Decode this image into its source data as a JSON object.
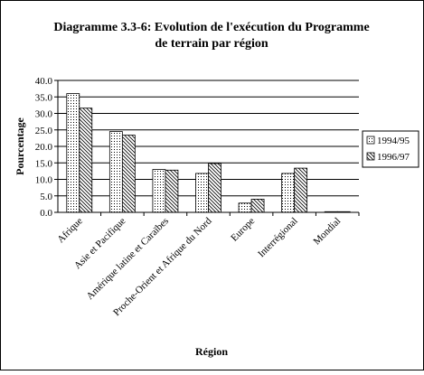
{
  "chart_data": {
    "type": "bar",
    "title": "Diagramme 3.3-6: Evolution de l'exécution du Programme de terrain par région",
    "title_lines": [
      "Diagramme 3.3-6: Evolution de l'exécution du Programme",
      "de terrain par région"
    ],
    "xlabel": "Région",
    "ylabel": "Pourcentage",
    "categories": [
      "Afrique",
      "Asie et Pacifique",
      "Amérique latine et Caraïbes",
      "Proche-Orient et Afrique du Nord",
      "Europe",
      "Interrégional",
      "Mondial"
    ],
    "series": [
      {
        "name": "1994/95",
        "values": [
          36.0,
          24.5,
          13.0,
          11.8,
          2.8,
          11.8,
          0.2
        ]
      },
      {
        "name": "1996/97",
        "values": [
          31.6,
          23.4,
          12.8,
          14.8,
          4.0,
          13.4,
          0.2
        ]
      }
    ],
    "yticks": [
      "0.0",
      "5.0",
      "10.0",
      "15.0",
      "20.0",
      "25.0",
      "30.0",
      "35.0",
      "40.0"
    ],
    "ylim": [
      0,
      40
    ],
    "grid": true,
    "legend_position": "right"
  }
}
